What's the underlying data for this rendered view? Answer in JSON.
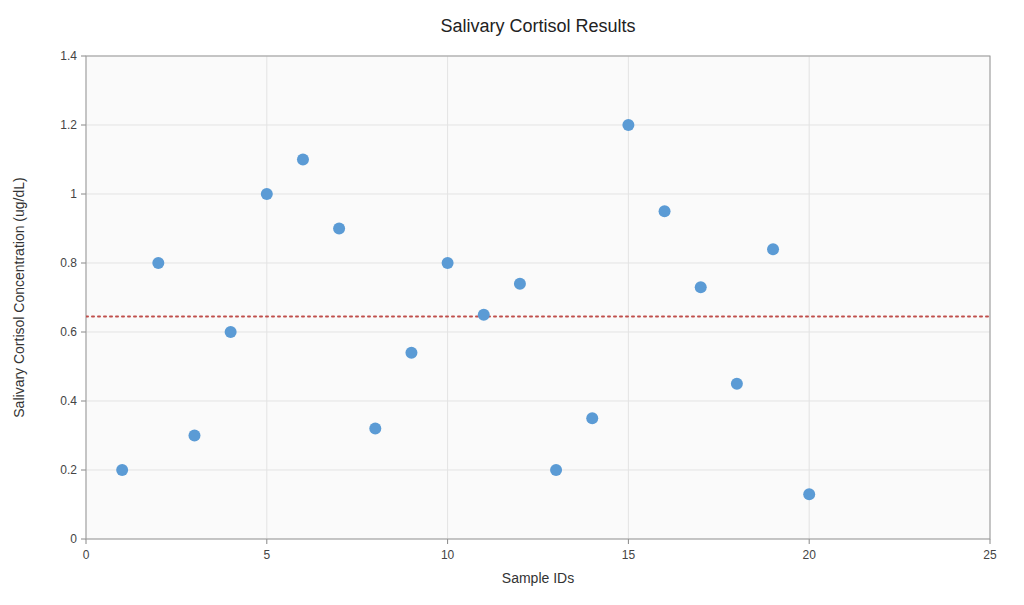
{
  "chart_data": {
    "type": "scatter",
    "title": "Salivary Cortisol Results",
    "xlabel": "Sample IDs",
    "ylabel": "Salivary Cortisol Concentration (ug/dL)",
    "x": [
      1,
      2,
      3,
      4,
      5,
      6,
      7,
      8,
      9,
      10,
      11,
      12,
      13,
      14,
      15,
      16,
      17,
      18,
      19,
      20
    ],
    "values": [
      0.2,
      0.8,
      0.3,
      0.6,
      1.0,
      1.1,
      0.9,
      0.32,
      0.54,
      0.8,
      0.65,
      0.74,
      0.2,
      0.35,
      1.2,
      0.95,
      0.73,
      0.45,
      0.84,
      0.13
    ],
    "color": "#5b9bd5",
    "marker": "circle",
    "reference_lines": [
      {
        "value": 0.645,
        "color": "#c0504d",
        "line_style": "dotted"
      }
    ],
    "xlim": [
      0,
      25
    ],
    "ylim": [
      0,
      1.4
    ],
    "xticks": [
      0,
      5,
      10,
      15,
      20,
      25
    ],
    "yticks": [
      0,
      0.2,
      0.4,
      0.6,
      0.8,
      1,
      1.2,
      1.4
    ],
    "grid": true
  }
}
